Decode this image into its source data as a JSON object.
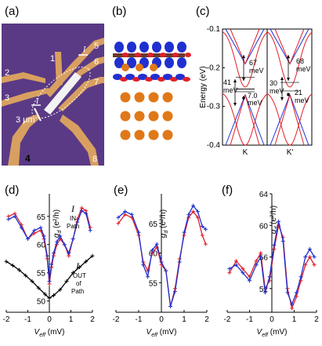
{
  "panels": {
    "a": "(a)",
    "b": "(b)",
    "c": "(c)",
    "d": "(d)",
    "e": "(e)",
    "f": "(f)"
  },
  "panel_a": {
    "numbers": [
      "1",
      "2",
      "3",
      "4",
      "5",
      "6",
      "7",
      "8"
    ],
    "current_label": "I",
    "scale": "3 μm"
  },
  "colors": {
    "red": "#e0202a",
    "blue": "#2030d0",
    "black": "#000000",
    "purple_bg": "#5a3a85",
    "gold": "#d8a060",
    "orange_atom": "#e07818"
  },
  "chart_data": [
    {
      "id": "c",
      "type": "line",
      "ylabel": "Energy (eV)",
      "ylim": [
        -0.4,
        -0.1
      ],
      "yticks": [
        "-0.1",
        "-0.2",
        "-0.3",
        "-0.4"
      ],
      "xticks": [
        "K",
        "K'"
      ],
      "annotations_K": [
        "67 meV",
        "41 meV",
        "7.0 meV"
      ],
      "annotations_Kp": [
        "68 meV",
        "30 meV",
        "21 meV"
      ]
    },
    {
      "id": "d",
      "type": "line",
      "xlabel": "V",
      "xlabel_sub": "eff",
      "xlabel_unit": " (mV)",
      "ylabel": "g",
      "ylabel_sub": "d",
      "ylabel_unit": " (e²/h)",
      "xlim": [
        -2,
        2
      ],
      "xticks": [
        "-2",
        "-1",
        "0",
        "1",
        "2"
      ],
      "ylim": [
        48,
        69
      ],
      "yticks": [
        "50",
        "55",
        "60",
        "65"
      ],
      "legend_in": [
        "I",
        "IN",
        "Path"
      ],
      "legend_out": [
        "I",
        "OUT",
        "of",
        "Path"
      ],
      "series": [
        {
          "color": "red",
          "x": [
            -1.9,
            -1.6,
            -1.3,
            -1.0,
            -0.7,
            -0.4,
            -0.25,
            -0.1,
            0.0,
            0.1,
            0.2,
            0.35,
            0.5,
            0.7,
            0.9,
            1.1,
            1.3,
            1.5,
            1.7,
            1.9
          ],
          "y": [
            65,
            65.5,
            63.5,
            61,
            62,
            62.5,
            61,
            57.5,
            53,
            56,
            58,
            60,
            61,
            60,
            58,
            61,
            64.5,
            66.5,
            66,
            63
          ]
        },
        {
          "color": "blue",
          "x": [
            -1.9,
            -1.6,
            -1.3,
            -1.0,
            -0.7,
            -0.4,
            -0.25,
            -0.1,
            0.0,
            0.1,
            0.2,
            0.35,
            0.5,
            0.7,
            0.9,
            1.1,
            1.3,
            1.5,
            1.7,
            1.9
          ],
          "y": [
            64.5,
            65,
            63,
            61,
            62.5,
            63,
            61.5,
            58,
            53.5,
            56.5,
            58.5,
            60.5,
            61.5,
            60,
            58.5,
            61,
            64,
            66,
            65.5,
            62.5
          ]
        },
        {
          "color": "black",
          "x": [
            -2,
            -1.7,
            -1.4,
            -1.1,
            -0.8,
            -0.5,
            -0.2,
            0,
            0.2,
            0.5,
            0.8,
            1.1,
            1.4,
            1.7,
            2
          ],
          "y": [
            57,
            56.3,
            55.5,
            54.5,
            53.5,
            52.3,
            51.2,
            50.5,
            51,
            52,
            53.5,
            55,
            56,
            57,
            58
          ]
        }
      ]
    },
    {
      "id": "e",
      "type": "line",
      "xlabel": "V",
      "xlabel_sub": "eff",
      "xlabel_unit": " (mV)",
      "ylabel": "g",
      "ylabel_sub": "d",
      "ylabel_unit": " (e²/h)",
      "xlim": [
        -2,
        2
      ],
      "xticks": [
        "-2",
        "-1",
        "0",
        "1",
        "2"
      ],
      "ylim": [
        50,
        70
      ],
      "yticks": [
        "55",
        "60",
        "65"
      ],
      "series": [
        {
          "color": "red",
          "x": [
            -1.9,
            -1.6,
            -1.3,
            -1.0,
            -0.8,
            -0.6,
            -0.4,
            -0.2,
            0,
            0.2,
            0.4,
            0.6,
            0.8,
            1.0,
            1.2,
            1.4,
            1.6,
            1.8,
            1.95
          ],
          "y": [
            65,
            66.5,
            66,
            63,
            58.5,
            57,
            60,
            61,
            58,
            57,
            51,
            54,
            59,
            63,
            66,
            67,
            66,
            63,
            61.5
          ]
        },
        {
          "color": "blue",
          "x": [
            -1.9,
            -1.6,
            -1.3,
            -1.0,
            -0.8,
            -0.6,
            -0.4,
            -0.2,
            0,
            0.2,
            0.4,
            0.6,
            0.8,
            1.0,
            1.2,
            1.4,
            1.6,
            1.8,
            1.95
          ],
          "y": [
            66,
            67,
            66.5,
            63.5,
            58,
            56,
            60.5,
            61.5,
            58.5,
            57,
            51,
            53.5,
            58.5,
            63.5,
            66.5,
            68,
            67,
            64.5,
            64
          ]
        }
      ]
    },
    {
      "id": "f",
      "type": "line",
      "xlabel": "V",
      "xlabel_sub": "eff",
      "xlabel_unit": " (mV)",
      "ylabel": "g",
      "ylabel_sub": "d",
      "ylabel_unit": " (e²/h)",
      "xlim": [
        -2,
        2
      ],
      "xticks": [
        "-2",
        "-1",
        "0",
        "1",
        "2"
      ],
      "ylim": [
        49,
        64
      ],
      "yticks": [
        "52",
        "56",
        "60",
        "64"
      ],
      "series": [
        {
          "color": "red",
          "x": [
            -1.9,
            -1.6,
            -1.3,
            -1.0,
            -0.7,
            -0.5,
            -0.3,
            -0.1,
            0.1,
            0.3,
            0.5,
            0.7,
            0.9,
            1.1,
            1.3,
            1.5,
            1.7,
            1.9
          ],
          "y": [
            54,
            55.5,
            54.5,
            53.5,
            55.5,
            56.5,
            52,
            53,
            57,
            60,
            58.5,
            52,
            49.5,
            51,
            53,
            55,
            56,
            55
          ]
        },
        {
          "color": "blue",
          "x": [
            -1.9,
            -1.6,
            -1.3,
            -1.0,
            -0.7,
            -0.5,
            -0.3,
            -0.1,
            0.1,
            0.3,
            0.5,
            0.7,
            0.9,
            1.1,
            1.3,
            1.5,
            1.7,
            1.9
          ],
          "y": [
            54.5,
            55,
            54,
            53,
            55,
            56,
            51.5,
            53.5,
            57.5,
            60.5,
            58,
            51.5,
            50,
            51.5,
            53.5,
            56,
            57,
            56
          ]
        }
      ]
    }
  ]
}
